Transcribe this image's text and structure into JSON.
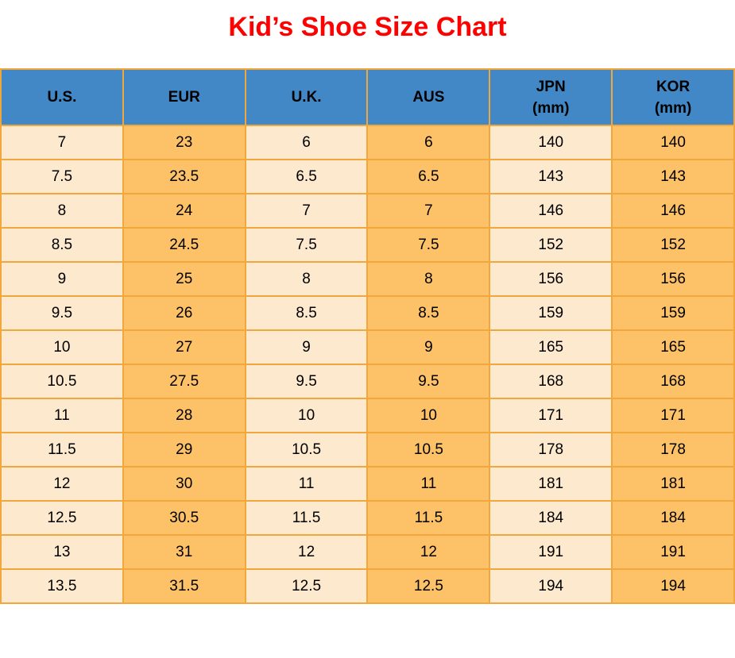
{
  "title": {
    "text": "Kid’s Shoe Size Chart"
  },
  "theme": {
    "page_bg": "#FFFFFF",
    "title_color": "#FE0000",
    "header_bg": "#4288C6",
    "header_text": "#000000",
    "col_light": "#FDE9CD",
    "col_orange": "#FDC268",
    "border": "#F2A73C",
    "cell_text": "#000000"
  },
  "table": {
    "columns": [
      {
        "key": "us",
        "label": "U.S.",
        "sublabel": ""
      },
      {
        "key": "eur",
        "label": "EUR",
        "sublabel": ""
      },
      {
        "key": "uk",
        "label": "U.K.",
        "sublabel": ""
      },
      {
        "key": "aus",
        "label": "AUS",
        "sublabel": ""
      },
      {
        "key": "jpn",
        "label": "JPN",
        "sublabel": "(mm)"
      },
      {
        "key": "kor",
        "label": "KOR",
        "sublabel": "(mm)"
      }
    ]
  },
  "chart_data": {
    "type": "table",
    "title": "Kid’s Shoe Size Chart",
    "columns": [
      "U.S.",
      "EUR",
      "U.K.",
      "AUS",
      "JPN (mm)",
      "KOR (mm)"
    ],
    "rows": [
      [
        "7",
        "23",
        "6",
        "6",
        "140",
        "140"
      ],
      [
        "7.5",
        "23.5",
        "6.5",
        "6.5",
        "143",
        "143"
      ],
      [
        "8",
        "24",
        "7",
        "7",
        "146",
        "146"
      ],
      [
        "8.5",
        "24.5",
        "7.5",
        "7.5",
        "152",
        "152"
      ],
      [
        "9",
        "25",
        "8",
        "8",
        "156",
        "156"
      ],
      [
        "9.5",
        "26",
        "8.5",
        "8.5",
        "159",
        "159"
      ],
      [
        "10",
        "27",
        "9",
        "9",
        "165",
        "165"
      ],
      [
        "10.5",
        "27.5",
        "9.5",
        "9.5",
        "168",
        "168"
      ],
      [
        "11",
        "28",
        "10",
        "10",
        "171",
        "171"
      ],
      [
        "11.5",
        "29",
        "10.5",
        "10.5",
        "178",
        "178"
      ],
      [
        "12",
        "30",
        "11",
        "11",
        "181",
        "181"
      ],
      [
        "12.5",
        "30.5",
        "11.5",
        "11.5",
        "184",
        "184"
      ],
      [
        "13",
        "31",
        "12",
        "12",
        "191",
        "191"
      ],
      [
        "13.5",
        "31.5",
        "12.5",
        "12.5",
        "194",
        "194"
      ]
    ]
  }
}
